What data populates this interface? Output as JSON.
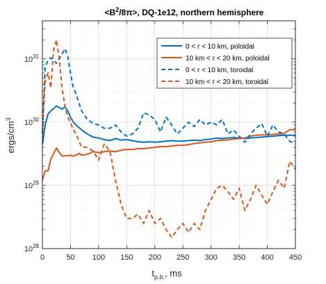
{
  "chart_data": {
    "type": "line",
    "title_main": "<B",
    "title_sup": "2",
    "title_rest": "/8π>, DQ-1e12, northern hemisphere",
    "xlabel_main": "t",
    "xlabel_sub": "p.b.",
    "xlabel_rest": ", ms",
    "ylabel_main": "ergs/cm",
    "ylabel_sup": "3",
    "x_ticks": [
      "0",
      "50",
      "100",
      "150",
      "200",
      "250",
      "300",
      "350",
      "400",
      "450"
    ],
    "y_ticks": [
      {
        "base": "10",
        "exp": "28",
        "value": 1e+28
      },
      {
        "base": "10",
        "exp": "29",
        "value": 1e+29
      },
      {
        "base": "10",
        "exp": "30",
        "value": 1e+30
      },
      {
        "base": "10",
        "exp": "31",
        "value": 1e+31
      }
    ],
    "xlim": [
      0,
      450
    ],
    "ylim": [
      1e+28,
      4e+31
    ],
    "yscale": "log",
    "grid": true,
    "legend_position": "top-right",
    "series": [
      {
        "name": "0 < r < 10 km, poloidal",
        "color": "#0072BD",
        "dash": "solid",
        "x": [
          0,
          5,
          10,
          15,
          20,
          25,
          30,
          35,
          40,
          45,
          50,
          55,
          60,
          65,
          70,
          80,
          90,
          100,
          110,
          120,
          130,
          140,
          150,
          160,
          170,
          180,
          190,
          200,
          210,
          220,
          230,
          240,
          250,
          260,
          270,
          280,
          290,
          300,
          310,
          320,
          330,
          340,
          350,
          360,
          370,
          380,
          390,
          400,
          410,
          420,
          430,
          440,
          450
        ],
        "y": [
          4.5e+29,
          9e+29,
          1.35e+30,
          1.5e+30,
          1.65e+30,
          1.8e+30,
          1.7e+30,
          1.6e+30,
          1.75e+30,
          1.5e+30,
          1.2e+30,
          1e+30,
          9e+29,
          8.2e+29,
          7.5e+29,
          6.5e+29,
          5.8e+29,
          5.6e+29,
          5.3e+29,
          5.1e+29,
          5.5e+29,
          5.2e+29,
          5.3e+29,
          5.1e+29,
          4.9e+29,
          4.8e+29,
          4.9e+29,
          4.8e+29,
          4.9e+29,
          5e+29,
          5.1e+29,
          5e+29,
          5e+29,
          5.1e+29,
          5.2e+29,
          5.1e+29,
          5.3e+29,
          5.4e+29,
          5.6e+29,
          5.5e+29,
          5.6e+29,
          5.7e+29,
          5.6e+29,
          5.5e+29,
          5.6e+29,
          5.7e+29,
          5.8e+29,
          5.9e+29,
          6e+29,
          6.1e+29,
          6.2e+29,
          6.2e+29,
          6.2e+29
        ]
      },
      {
        "name": "10 km < r < 20 km, poloidal",
        "color": "#D95319",
        "dash": "solid",
        "x": [
          0,
          5,
          10,
          15,
          20,
          25,
          30,
          35,
          40,
          45,
          50,
          55,
          60,
          65,
          70,
          80,
          90,
          100,
          110,
          120,
          130,
          140,
          150,
          160,
          170,
          180,
          190,
          200,
          210,
          220,
          230,
          240,
          250,
          260,
          270,
          280,
          290,
          300,
          310,
          320,
          330,
          340,
          350,
          360,
          370,
          380,
          390,
          400,
          410,
          420,
          430,
          440,
          450
        ],
        "y": [
          1.2e+29,
          1.7e+29,
          1.7e+29,
          2.6e+29,
          3.2e+29,
          3.9e+29,
          3.3e+29,
          2.9e+29,
          2.95e+29,
          2.95e+29,
          3e+29,
          2.9e+29,
          3e+29,
          3.2e+29,
          3e+29,
          3.1e+29,
          3.4e+29,
          3.3e+29,
          3.4e+29,
          3.5e+29,
          3.4e+29,
          3.6e+29,
          3.7e+29,
          3.7e+29,
          3.8e+29,
          3.8e+29,
          3.9e+29,
          4e+29,
          4.1e+29,
          4.1e+29,
          4.2e+29,
          4.3e+29,
          4.3e+29,
          4.4e+29,
          4.6e+29,
          4.7e+29,
          4.8e+29,
          4.9e+29,
          5.1e+29,
          5.2e+29,
          5.2e+29,
          5.4e+29,
          5.5e+29,
          5.6e+29,
          6e+29,
          6.2e+29,
          6.3e+29,
          6.3e+29,
          6.4e+29,
          6.5e+29,
          6.6e+29,
          7.6e+29,
          7.6e+29
        ]
      },
      {
        "name": "0 < r < 10 km, toroidal",
        "color": "#0072BD",
        "dash": "dashed",
        "x": [
          0,
          5,
          10,
          15,
          20,
          25,
          30,
          35,
          40,
          45,
          50,
          55,
          60,
          65,
          70,
          80,
          90,
          100,
          110,
          120,
          130,
          140,
          150,
          160,
          170,
          180,
          190,
          200,
          210,
          220,
          230,
          240,
          250,
          260,
          270,
          280,
          290,
          300,
          310,
          320,
          330,
          340,
          350,
          360,
          370,
          380,
          390,
          400,
          410,
          420,
          430,
          440,
          450
        ],
        "y": [
          6.5e+29,
          7.5e+30,
          9.5e+30,
          1.05e+31,
          9.5e+30,
          8.5e+30,
          1e+31,
          1.2e+31,
          1.45e+31,
          1.1e+31,
          6e+30,
          3.5e+30,
          2.8e+30,
          2e+30,
          1.5e+30,
          1.1e+30,
          9.5e+29,
          9e+29,
          8e+29,
          8e+29,
          9e+29,
          7e+29,
          6e+29,
          6.5e+29,
          8e+29,
          1.4e+30,
          1.3e+30,
          1.1e+30,
          7e+29,
          1.2e+30,
          9e+29,
          6.5e+29,
          8e+29,
          1e+30,
          8.5e+29,
          1.1e+30,
          9e+29,
          1e+30,
          9e+29,
          1.1e+30,
          6.5e+29,
          7.5e+29,
          6e+29,
          4.8e+29,
          6.5e+29,
          8e+29,
          9.5e+29,
          6e+29,
          9e+29,
          7e+29,
          6.5e+29,
          5e+29,
          4.5e+29
        ]
      },
      {
        "name": "10 km < r < 20 km, toroidal",
        "color": "#D95319",
        "dash": "dashed",
        "x": [
          0,
          5,
          10,
          15,
          20,
          25,
          30,
          35,
          40,
          45,
          50,
          55,
          60,
          65,
          70,
          80,
          90,
          100,
          110,
          120,
          130,
          140,
          150,
          160,
          170,
          180,
          190,
          200,
          210,
          220,
          230,
          240,
          250,
          260,
          270,
          280,
          290,
          300,
          310,
          320,
          330,
          340,
          350,
          360,
          370,
          380,
          390,
          400,
          410,
          420,
          430,
          440,
          450
        ],
        "y": [
          7e+29,
          4.5e+30,
          6e+30,
          3.5e+30,
          1.4e+31,
          2e+31,
          1e+31,
          3.5e+30,
          1.8e+30,
          1.2e+30,
          1e+30,
          7.5e+29,
          6.5e+29,
          5e+29,
          4e+29,
          4e+29,
          3.5e+29,
          2.5e+29,
          4.5e+29,
          3.5e+29,
          1.2e+29,
          5e+28,
          3e+28,
          3e+28,
          3.5e+28,
          2.5e+28,
          4e+28,
          2.5e+28,
          3e+28,
          2e+28,
          1.5e+28,
          2e+28,
          2.5e+28,
          1.8e+28,
          2.5e+28,
          2e+28,
          4e+28,
          6e+28,
          9e+28,
          1e+29,
          8e+28,
          6e+28,
          9e+28,
          4e+28,
          6e+28,
          1e+29,
          7e+28,
          5e+28,
          8e+28,
          1.2e+29,
          9e+28,
          2.4e+29,
          1.8e+29
        ]
      }
    ]
  }
}
